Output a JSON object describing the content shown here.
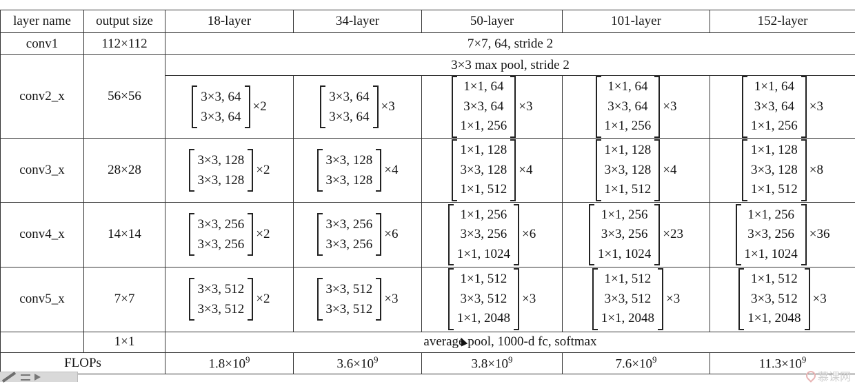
{
  "table": {
    "header": [
      "layer name",
      "output size",
      "18-layer",
      "34-layer",
      "50-layer",
      "101-layer",
      "152-layer"
    ],
    "conv1": {
      "name": "conv1",
      "size": "112×112",
      "spec": "7×7, 64, stride 2"
    },
    "conv2_x": {
      "name": "conv2_x",
      "size": "56×56",
      "pool": "3×3 max pool, stride 2",
      "cols": [
        {
          "lines": [
            "3×3, 64",
            "3×3, 64"
          ],
          "rep": "×2"
        },
        {
          "lines": [
            "3×3, 64",
            "3×3, 64"
          ],
          "rep": "×3"
        },
        {
          "lines": [
            "1×1, 64",
            "3×3, 64",
            "1×1, 256"
          ],
          "rep": "×3"
        },
        {
          "lines": [
            "1×1, 64",
            "3×3, 64",
            "1×1, 256"
          ],
          "rep": "×3"
        },
        {
          "lines": [
            "1×1, 64",
            "3×3, 64",
            "1×1, 256"
          ],
          "rep": "×3"
        }
      ]
    },
    "conv3_x": {
      "name": "conv3_x",
      "size": "28×28",
      "cols": [
        {
          "lines": [
            "3×3, 128",
            "3×3, 128"
          ],
          "rep": "×2"
        },
        {
          "lines": [
            "3×3, 128",
            "3×3, 128"
          ],
          "rep": "×4"
        },
        {
          "lines": [
            "1×1, 128",
            "3×3, 128",
            "1×1, 512"
          ],
          "rep": "×4"
        },
        {
          "lines": [
            "1×1, 128",
            "3×3, 128",
            "1×1, 512"
          ],
          "rep": "×4"
        },
        {
          "lines": [
            "1×1, 128",
            "3×3, 128",
            "1×1, 512"
          ],
          "rep": "×8"
        }
      ]
    },
    "conv4_x": {
      "name": "conv4_x",
      "size": "14×14",
      "cols": [
        {
          "lines": [
            "3×3, 256",
            "3×3, 256"
          ],
          "rep": "×2"
        },
        {
          "lines": [
            "3×3, 256",
            "3×3, 256"
          ],
          "rep": "×6"
        },
        {
          "lines": [
            "1×1, 256",
            "3×3, 256",
            "1×1, 1024"
          ],
          "rep": "×6"
        },
        {
          "lines": [
            "1×1, 256",
            "3×3, 256",
            "1×1, 1024"
          ],
          "rep": "×23"
        },
        {
          "lines": [
            "1×1, 256",
            "3×3, 256",
            "1×1, 1024"
          ],
          "rep": "×36"
        }
      ]
    },
    "conv5_x": {
      "name": "conv5_x",
      "size": "7×7",
      "cols": [
        {
          "lines": [
            "3×3, 512",
            "3×3, 512"
          ],
          "rep": "×2"
        },
        {
          "lines": [
            "3×3, 512",
            "3×3, 512"
          ],
          "rep": "×3"
        },
        {
          "lines": [
            "1×1, 512",
            "3×3, 512",
            "1×1, 2048"
          ],
          "rep": "×3"
        },
        {
          "lines": [
            "1×1, 512",
            "3×3, 512",
            "1×1, 2048"
          ],
          "rep": "×3"
        },
        {
          "lines": [
            "1×1, 512",
            "3×3, 512",
            "1×1, 2048"
          ],
          "rep": "×3"
        }
      ]
    },
    "avg": {
      "size": "1×1",
      "spec": "average pool, 1000-d fc, softmax"
    },
    "flops": {
      "label": "FLOPs",
      "values": [
        {
          "base": "1.8×10",
          "exp": "9"
        },
        {
          "base": "3.6×10",
          "exp": "9"
        },
        {
          "base": "3.8×10",
          "exp": "9"
        },
        {
          "base": "7.6×10",
          "exp": "9"
        },
        {
          "base": "11.3×10",
          "exp": "9"
        }
      ]
    }
  },
  "watermark": {
    "text": "慕课网",
    "logo": "imooc-logo-icon"
  },
  "toolbar": {
    "icons": [
      "pen-icon",
      "list-icon",
      "next-arrow-icon"
    ]
  }
}
